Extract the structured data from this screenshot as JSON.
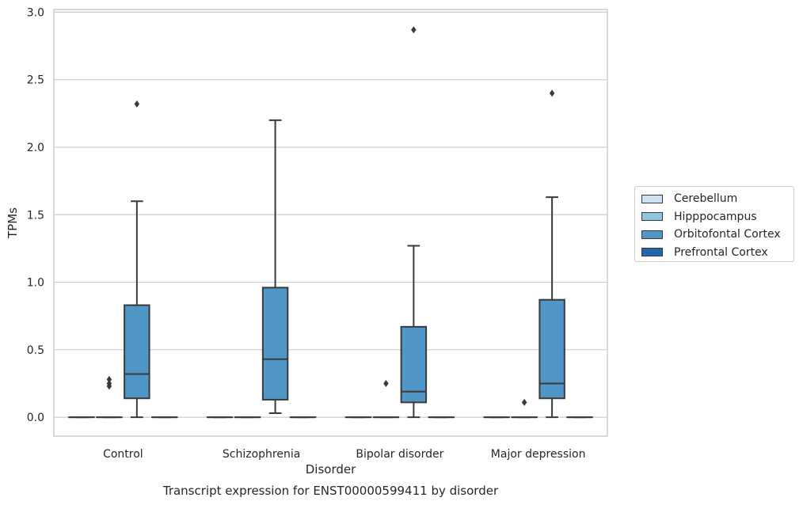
{
  "chart_data": {
    "type": "box",
    "title": "Transcript expression for ENST00000599411 by disorder",
    "xlabel": "Disorder",
    "ylabel": "TPMs",
    "ylim": [
      -0.14,
      3.02
    ],
    "yticks": [
      "0.0",
      "0.5",
      "1.0",
      "1.5",
      "2.0",
      "2.5",
      "3.0"
    ],
    "yticks_values": [
      0.0,
      0.5,
      1.0,
      1.5,
      2.0,
      2.5,
      3.0
    ],
    "grid": true,
    "legend_placement": "right, outside plot",
    "categories": [
      "Control",
      "Schizophrenia",
      "Bipolar disorder",
      "Major depression"
    ],
    "series": [
      {
        "name": "Cerebellum",
        "color": "#cfe1f2",
        "boxes": [
          {
            "whislo": 0,
            "q1": 0,
            "med": 0,
            "q3": 0,
            "whishi": 0,
            "fliers": []
          },
          {
            "whislo": 0,
            "q1": 0,
            "med": 0,
            "q3": 0,
            "whishi": 0,
            "fliers": []
          },
          {
            "whislo": 0,
            "q1": 0,
            "med": 0,
            "q3": 0,
            "whishi": 0,
            "fliers": []
          },
          {
            "whislo": 0,
            "q1": 0,
            "med": 0,
            "q3": 0,
            "whishi": 0,
            "fliers": []
          }
        ]
      },
      {
        "name": "Hipppocampus",
        "color": "#93c4de",
        "boxes": [
          {
            "whislo": 0,
            "q1": 0,
            "med": 0,
            "q3": 0,
            "whishi": 0,
            "fliers": [
              0.28,
              0.25,
              0.23
            ]
          },
          {
            "whislo": 0,
            "q1": 0,
            "med": 0,
            "q3": 0,
            "whishi": 0,
            "fliers": []
          },
          {
            "whislo": 0,
            "q1": 0,
            "med": 0,
            "q3": 0,
            "whishi": 0,
            "fliers": [
              0.25
            ]
          },
          {
            "whislo": 0,
            "q1": 0,
            "med": 0,
            "q3": 0,
            "whishi": 0,
            "fliers": [
              0.11
            ]
          }
        ]
      },
      {
        "name": "Orbitofontal Cortex",
        "color": "#5096c6",
        "boxes": [
          {
            "whislo": 0.0,
            "q1": 0.14,
            "med": 0.32,
            "q3": 0.83,
            "whishi": 1.6,
            "fliers": [
              2.32
            ]
          },
          {
            "whislo": 0.03,
            "q1": 0.13,
            "med": 0.43,
            "q3": 0.96,
            "whishi": 2.2,
            "fliers": []
          },
          {
            "whislo": 0.0,
            "q1": 0.11,
            "med": 0.19,
            "q3": 0.67,
            "whishi": 1.27,
            "fliers": [
              2.87
            ]
          },
          {
            "whislo": 0.0,
            "q1": 0.14,
            "med": 0.25,
            "q3": 0.87,
            "whishi": 1.63,
            "fliers": [
              2.4
            ]
          }
        ]
      },
      {
        "name": "Prefrontal Cortex",
        "color": "#2067ab",
        "boxes": [
          {
            "whislo": 0,
            "q1": 0,
            "med": 0,
            "q3": 0,
            "whishi": 0,
            "fliers": []
          },
          {
            "whislo": 0,
            "q1": 0,
            "med": 0,
            "q3": 0,
            "whishi": 0,
            "fliers": []
          },
          {
            "whislo": 0,
            "q1": 0,
            "med": 0,
            "q3": 0,
            "whishi": 0,
            "fliers": []
          },
          {
            "whislo": 0,
            "q1": 0,
            "med": 0,
            "q3": 0,
            "whishi": 0,
            "fliers": []
          }
        ]
      }
    ]
  }
}
